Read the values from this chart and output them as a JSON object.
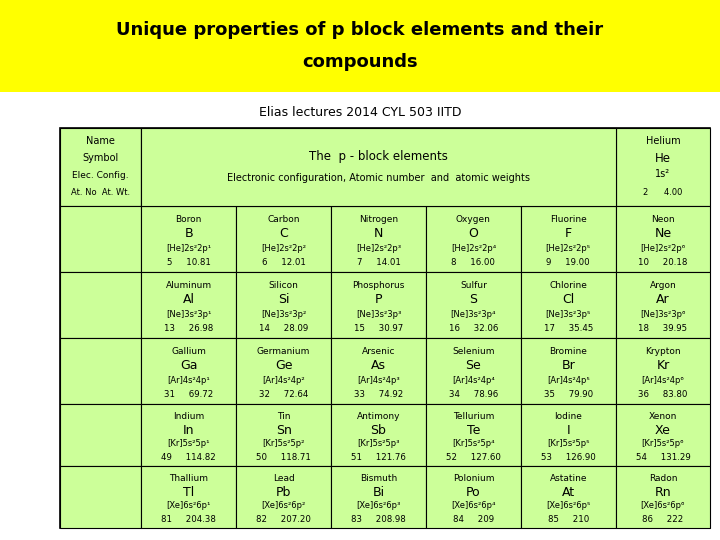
{
  "title_line1": "Unique properties of p block elements and their",
  "title_line2": "compounds",
  "subtitle": "Elias lectures 2014 CYL 503 IITD",
  "title_bg": "#FFFF00",
  "table_bg": "#CCFF99",
  "elements": [
    [
      {
        "name": "Boron",
        "sym": "B",
        "cfg": "[He]2s²2p¹",
        "num": "5",
        "wt": "10.81"
      },
      {
        "name": "Carbon",
        "sym": "C",
        "cfg": "[He]2s²2p²",
        "num": "6",
        "wt": "12.01"
      },
      {
        "name": "Nitrogen",
        "sym": "N",
        "cfg": "[He]2s²2p³",
        "num": "7",
        "wt": "14.01"
      },
      {
        "name": "Oxygen",
        "sym": "O",
        "cfg": "[He]2s²2p⁴",
        "num": "8",
        "wt": "16.00"
      },
      {
        "name": "Fluorine",
        "sym": "F",
        "cfg": "[He]2s²2p⁵",
        "num": "9",
        "wt": "19.00"
      },
      {
        "name": "Neon",
        "sym": "Ne",
        "cfg": "[He]2s²2p⁶",
        "num": "10",
        "wt": "20.18"
      }
    ],
    [
      {
        "name": "Aluminum",
        "sym": "Al",
        "cfg": "[Ne]3s²3p¹",
        "num": "13",
        "wt": "26.98"
      },
      {
        "name": "Silicon",
        "sym": "Si",
        "cfg": "[Ne]3s²3p²",
        "num": "14",
        "wt": "28.09"
      },
      {
        "name": "Phosphorus",
        "sym": "P",
        "cfg": "[Ne]3s²3p³",
        "num": "15",
        "wt": "30.97"
      },
      {
        "name": "Sulfur",
        "sym": "S",
        "cfg": "[Ne]3s²3p⁴",
        "num": "16",
        "wt": "32.06"
      },
      {
        "name": "Chlorine",
        "sym": "Cl",
        "cfg": "[Ne]3s²3p⁵",
        "num": "17",
        "wt": "35.45"
      },
      {
        "name": "Argon",
        "sym": "Ar",
        "cfg": "[Ne]3s²3p⁶",
        "num": "18",
        "wt": "39.95"
      }
    ],
    [
      {
        "name": "Gallium",
        "sym": "Ga",
        "cfg": "[Ar]4s²4p¹",
        "num": "31",
        "wt": "69.72"
      },
      {
        "name": "Germanium",
        "sym": "Ge",
        "cfg": "[Ar]4s²4p²",
        "num": "32",
        "wt": "72.64"
      },
      {
        "name": "Arsenic",
        "sym": "As",
        "cfg": "[Ar]4s²4p³",
        "num": "33",
        "wt": "74.92"
      },
      {
        "name": "Selenium",
        "sym": "Se",
        "cfg": "[Ar]4s²4p⁴",
        "num": "34",
        "wt": "78.96"
      },
      {
        "name": "Bromine",
        "sym": "Br",
        "cfg": "[Ar]4s²4p⁵",
        "num": "35",
        "wt": "79.90"
      },
      {
        "name": "Krypton",
        "sym": "Kr",
        "cfg": "[Ar]4s²4p⁶",
        "num": "36",
        "wt": "83.80"
      }
    ],
    [
      {
        "name": "Indium",
        "sym": "In",
        "cfg": "[Kr]5s²5p¹",
        "num": "49",
        "wt": "114.82"
      },
      {
        "name": "Tin",
        "sym": "Sn",
        "cfg": "[Kr]5s²5p²",
        "num": "50",
        "wt": "118.71"
      },
      {
        "name": "Antimony",
        "sym": "Sb",
        "cfg": "[Kr]5s²5p³",
        "num": "51",
        "wt": "121.76"
      },
      {
        "name": "Tellurium",
        "sym": "Te",
        "cfg": "[Kr]5s²5p⁴",
        "num": "52",
        "wt": "127.60"
      },
      {
        "name": "Iodine",
        "sym": "I",
        "cfg": "[Kr]5s²5p⁵",
        "num": "53",
        "wt": "126.90"
      },
      {
        "name": "Xenon",
        "sym": "Xe",
        "cfg": "[Kr]5s²5p⁶",
        "num": "54",
        "wt": "131.29"
      }
    ],
    [
      {
        "name": "Thallium",
        "sym": "Tl",
        "cfg": "[Xe]6s²6p¹",
        "num": "81",
        "wt": "204.38"
      },
      {
        "name": "Lead",
        "sym": "Pb",
        "cfg": "[Xe]6s²6p²",
        "num": "82",
        "wt": "207.20"
      },
      {
        "name": "Bismuth",
        "sym": "Bi",
        "cfg": "[Xe]6s²6p³",
        "num": "83",
        "wt": "208.98"
      },
      {
        "name": "Polonium",
        "sym": "Po",
        "cfg": "[Xe]6s²6p⁴",
        "num": "84",
        "wt": "209"
      },
      {
        "name": "Astatine",
        "sym": "At",
        "cfg": "[Xe]6s²6p⁵",
        "num": "85",
        "wt": "210"
      },
      {
        "name": "Radon",
        "sym": "Rn",
        "cfg": "[Xe]6s²6p⁶",
        "num": "86",
        "wt": "222"
      }
    ]
  ]
}
